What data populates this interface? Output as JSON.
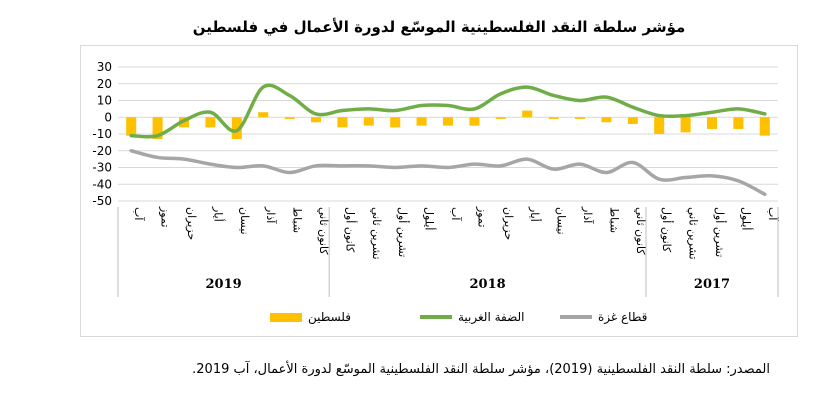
{
  "chart_data": {
    "type": "bar+line",
    "title": "مؤشر سلطة النقد الفلسطينية الموسّع لدورة الأعمال في فلسطين",
    "yticks": [
      30,
      20,
      10,
      0,
      -10,
      -20,
      -30,
      -40,
      -50
    ],
    "ylim": [
      -50,
      30
    ],
    "grid": true,
    "legend_position": "bottom",
    "categories": [
      "آب",
      "أيلول",
      "تشرين أول",
      "تشرين ثاني",
      "كانون أول",
      "كانون ثاني",
      "شباط",
      "آذار",
      "نيسان",
      "أيار",
      "حزيران",
      "تموز",
      "آب",
      "أيلول",
      "تشرين أول",
      "تشرين ثاني",
      "كانون أول",
      "كانون ثاني",
      "شباط",
      "آذار",
      "نيسان",
      "أيار",
      "حزيران",
      "تموز",
      "آب"
    ],
    "years": [
      {
        "label": "2017",
        "start": 0,
        "end": 4
      },
      {
        "label": "2018",
        "start": 5,
        "end": 16
      },
      {
        "label": "2019",
        "start": 17,
        "end": 24
      }
    ],
    "series": [
      {
        "name": "فلسطين",
        "type": "bar",
        "color": "#FFC000",
        "values": [
          -11,
          -7,
          -7,
          -9,
          -10,
          -4,
          -3,
          -1,
          -1,
          4,
          -1,
          -5,
          -5,
          -5,
          -6,
          -5,
          -6,
          -3,
          -1,
          3,
          -13,
          -6,
          -6,
          -13,
          -11
        ]
      },
      {
        "name": "الضفة الغربية",
        "type": "line",
        "color": "#70AD47",
        "values": [
          2,
          5,
          3,
          1,
          1,
          6,
          12,
          10,
          13,
          18,
          14,
          5,
          7,
          7,
          4,
          5,
          4,
          2,
          13,
          18,
          -8,
          3,
          -2,
          -11,
          -11
        ]
      },
      {
        "name": "قطاع غزة",
        "type": "line",
        "color": "#A6A6A6",
        "values": [
          -46,
          -38,
          -35,
          -36,
          -37,
          -27,
          -33,
          -28,
          -31,
          -25,
          -29,
          -28,
          -30,
          -29,
          -30,
          -29,
          -29,
          -29,
          -33,
          -29,
          -30,
          -28,
          -25,
          -24,
          -20
        ]
      }
    ]
  },
  "source_text": "المصدر: سلطة النقد الفلسطينية (2019)، مؤشر سلطة النقد الفلسطينية الموسّع لدورة الأعمال، آب 2019."
}
